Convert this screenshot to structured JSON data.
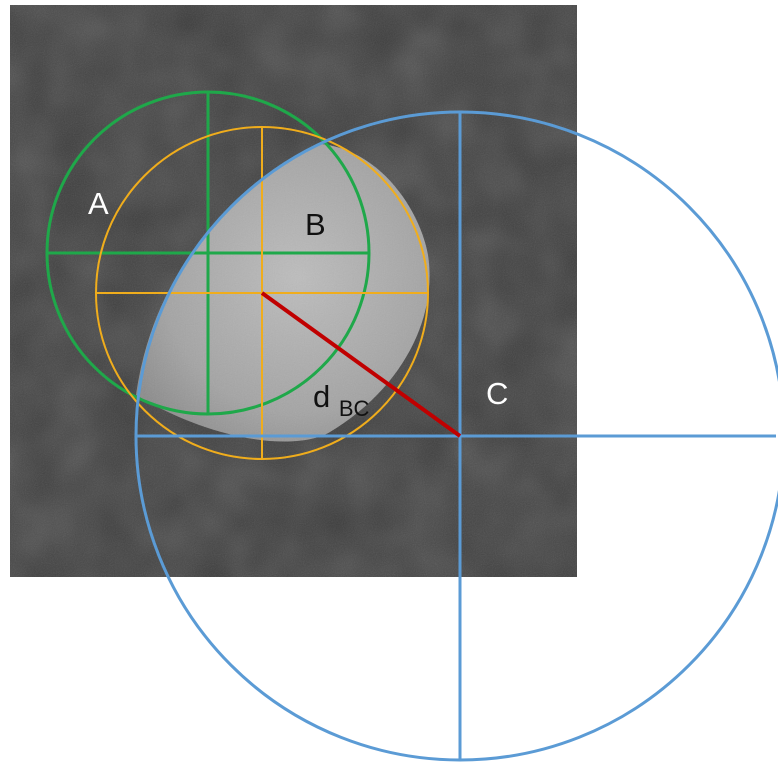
{
  "labels": {
    "a": "A",
    "b": "B",
    "c": "C",
    "d_main": "d",
    "d_sub": "BC"
  },
  "colors": {
    "circle_a": "#1fa84a",
    "circle_b": "#f0ad1c",
    "circle_c": "#5b9bd5",
    "distance_line": "#c00000",
    "label_light": "#ffffff",
    "label_dark": "#111111",
    "background": "#ffffff",
    "micrograph": "#3b3b3b"
  }
}
